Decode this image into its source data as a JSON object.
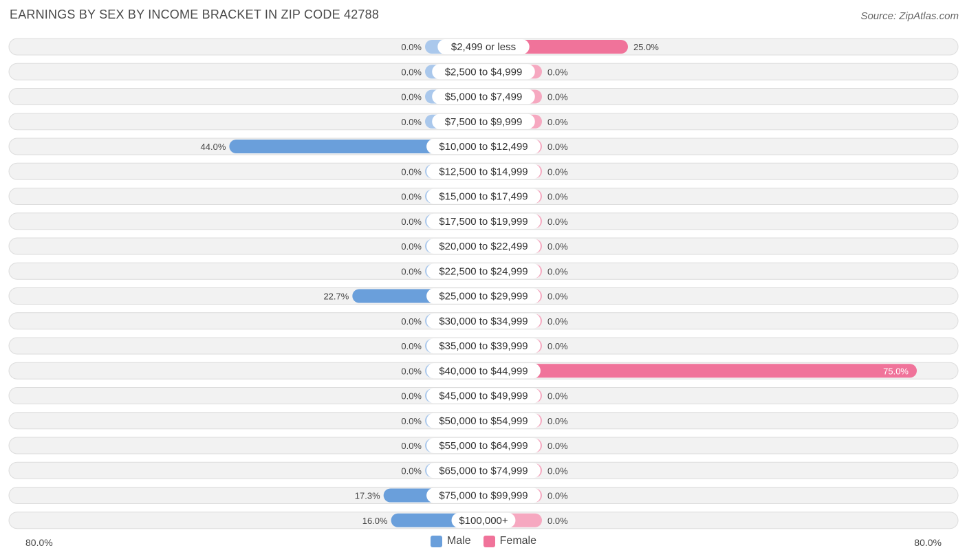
{
  "header": {
    "title": "EARNINGS BY SEX BY INCOME BRACKET IN ZIP CODE 42788",
    "source": "Source: ZipAtlas.com"
  },
  "colors": {
    "male": "#6a9fdb",
    "male_light": "#aac8ec",
    "female": "#f0739a",
    "female_light": "#f6a8c0"
  },
  "chart_data": {
    "type": "bar",
    "orientation": "horizontal-diverging",
    "title": "EARNINGS BY SEX BY INCOME BRACKET IN ZIP CODE 42788",
    "axis_min_label": "80.0%",
    "axis_max_label": "80.0%",
    "xlim": [
      -80,
      80
    ],
    "categories": [
      "$2,499 or less",
      "$2,500 to $4,999",
      "$5,000 to $7,499",
      "$7,500 to $9,999",
      "$10,000 to $12,499",
      "$12,500 to $14,999",
      "$15,000 to $17,499",
      "$17,500 to $19,999",
      "$20,000 to $22,499",
      "$22,500 to $24,999",
      "$25,000 to $29,999",
      "$30,000 to $34,999",
      "$35,000 to $39,999",
      "$40,000 to $44,999",
      "$45,000 to $49,999",
      "$50,000 to $54,999",
      "$55,000 to $64,999",
      "$65,000 to $74,999",
      "$75,000 to $99,999",
      "$100,000+"
    ],
    "series": [
      {
        "name": "Male",
        "values": [
          0.0,
          0.0,
          0.0,
          0.0,
          44.0,
          0.0,
          0.0,
          0.0,
          0.0,
          0.0,
          22.7,
          0.0,
          0.0,
          0.0,
          0.0,
          0.0,
          0.0,
          0.0,
          17.3,
          16.0
        ],
        "labels": [
          "0.0%",
          "0.0%",
          "0.0%",
          "0.0%",
          "44.0%",
          "0.0%",
          "0.0%",
          "0.0%",
          "0.0%",
          "0.0%",
          "22.7%",
          "0.0%",
          "0.0%",
          "0.0%",
          "0.0%",
          "0.0%",
          "0.0%",
          "0.0%",
          "17.3%",
          "16.0%"
        ]
      },
      {
        "name": "Female",
        "values": [
          25.0,
          0.0,
          0.0,
          0.0,
          0.0,
          0.0,
          0.0,
          0.0,
          0.0,
          0.0,
          0.0,
          0.0,
          0.0,
          75.0,
          0.0,
          0.0,
          0.0,
          0.0,
          0.0,
          0.0
        ],
        "labels": [
          "25.0%",
          "0.0%",
          "0.0%",
          "0.0%",
          "0.0%",
          "0.0%",
          "0.0%",
          "0.0%",
          "0.0%",
          "0.0%",
          "0.0%",
          "0.0%",
          "0.0%",
          "75.0%",
          "0.0%",
          "0.0%",
          "0.0%",
          "0.0%",
          "0.0%",
          "0.0%"
        ]
      }
    ],
    "legend": [
      "Male",
      "Female"
    ],
    "legend_position": "bottom-center"
  }
}
